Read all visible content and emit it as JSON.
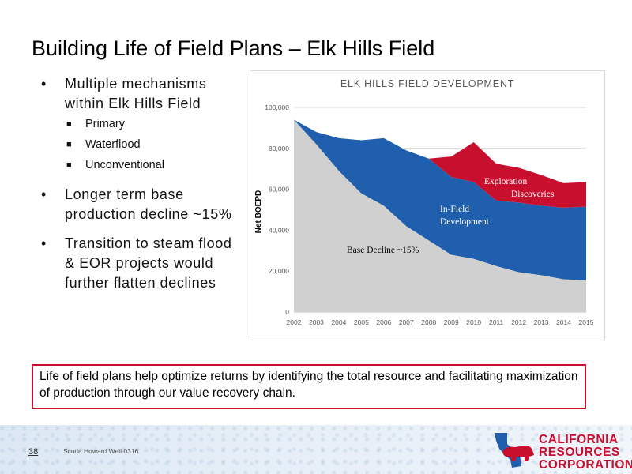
{
  "slide": {
    "title": "Building Life of Field Plans – Elk Hills Field",
    "bullets": [
      {
        "text": "Multiple mechanisms within Elk Hills Field",
        "sub": [
          "Primary",
          "Waterflood",
          "Unconventional"
        ]
      },
      {
        "text": "Longer term base production decline ~15%",
        "sub": []
      },
      {
        "text": "Transition to steam flood & EOR projects would further flatten declines",
        "sub": []
      }
    ],
    "callout": "Life of field plans help optimize returns by identifying the total resource and facilitating maximization of production through our value recovery chain.",
    "page_number": "38",
    "footer_note": "Scotia Howard Weil 0316",
    "logo_lines": [
      "CALIFORNIA",
      "RESOURCES",
      "CORPORATION"
    ],
    "colors": {
      "accent": "#c8102e",
      "blue": "#1f5fad",
      "gray": "#d0d0d0"
    }
  },
  "chart_data": {
    "type": "area",
    "stacked": true,
    "title": "ELK HILLS FIELD DEVELOPMENT",
    "xlabel": "",
    "ylabel": "Net BOEPD",
    "x": [
      "2002",
      "2003",
      "2004",
      "2005",
      "2006",
      "2007",
      "2008",
      "2009",
      "2010",
      "2011",
      "2012",
      "2013",
      "2014",
      "2015"
    ],
    "ylim": [
      0,
      100000
    ],
    "yticks": [
      0,
      20000,
      40000,
      60000,
      80000,
      100000
    ],
    "ytick_labels": [
      "0",
      "20,000",
      "40,000",
      "60,000",
      "80,000",
      "100,000"
    ],
    "grid": true,
    "series": [
      {
        "values": [
          94000,
          82000,
          69000,
          58000,
          52000,
          42000,
          35000,
          28000,
          26000,
          22500,
          19500,
          18000,
          16000,
          15500
        ],
        "color": "#d0d0d0"
      },
      {
        "values": [
          0,
          6000,
          16000,
          26000,
          33000,
          37000,
          40000,
          38000,
          37500,
          32000,
          34000,
          34000,
          35000,
          36000
        ],
        "color": "#1f5fad"
      },
      {
        "values": [
          0,
          0,
          0,
          0,
          0,
          0,
          0,
          10000,
          19500,
          18000,
          17000,
          15000,
          12000,
          12000
        ],
        "color": "#c8102e"
      }
    ],
    "annotations": [
      {
        "text": "Base Decline ~15%"
      },
      {
        "text": "In-Field"
      },
      {
        "text": "Development"
      },
      {
        "text": "Exploration"
      },
      {
        "text": "Discoveries"
      }
    ]
  }
}
